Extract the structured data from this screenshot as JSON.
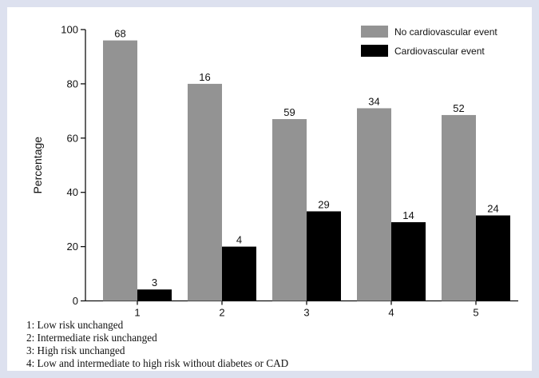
{
  "chart_data": {
    "type": "bar",
    "title": "",
    "xlabel": "",
    "ylabel": "Percentage",
    "ylim": [
      0,
      100
    ],
    "yticks": [
      0,
      20,
      40,
      60,
      80,
      100
    ],
    "categories": [
      "1",
      "2",
      "3",
      "4",
      "5"
    ],
    "series": [
      {
        "name": "No cardiovascular event",
        "color": "#939393",
        "values": [
          96,
          80,
          67,
          71,
          68.5
        ],
        "labels": [
          "68",
          "16",
          "59",
          "34",
          "52"
        ]
      },
      {
        "name": "Cardiovascular event",
        "color": "#000000",
        "values": [
          4.2,
          20,
          33,
          29,
          31.5
        ],
        "labels": [
          "3",
          "4",
          "29",
          "14",
          "24"
        ]
      }
    ],
    "legend_position": "top-right",
    "grid": false
  },
  "notes": [
    "1: Low risk unchanged",
    "2: Intermediate risk unchanged",
    "3: High risk unchanged",
    "4: Low and intermediate to high risk without diabetes or CAD"
  ]
}
